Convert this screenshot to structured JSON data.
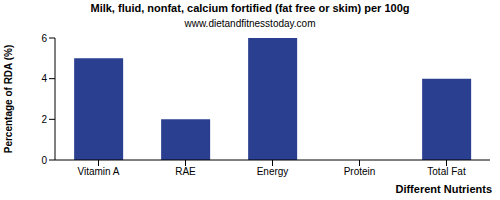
{
  "chart_data": {
    "type": "bar",
    "title": "Milk, fluid, nonfat, calcium fortified (fat free or skim) per 100g",
    "subtitle": "www.dietandfitnesstoday.com",
    "x_label": "Different Nutrients",
    "y_label": "Percentage of RDA (%)",
    "categories": [
      "Vitamin A",
      "RAE",
      "Energy",
      "Protein",
      "Total Fat"
    ],
    "values": [
      5,
      2,
      6,
      0,
      4
    ],
    "color": "#2a3f8f",
    "ylim": [
      0,
      6
    ],
    "yticks": [
      0,
      2,
      4,
      6
    ],
    "grid": false
  }
}
